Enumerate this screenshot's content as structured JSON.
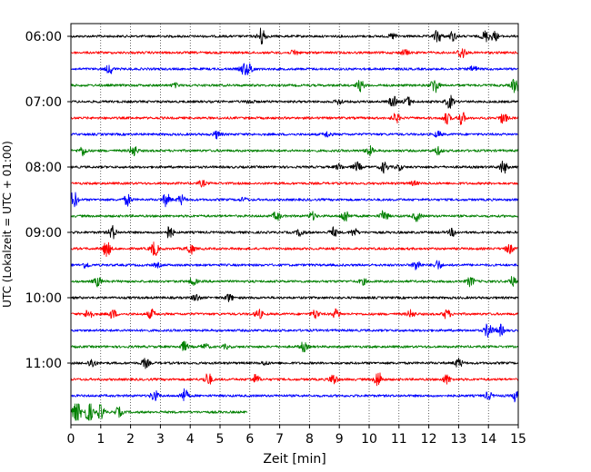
{
  "chart_data": {
    "type": "line",
    "title": "",
    "xlabel": "Zeit  [min]",
    "ylabel": "UTC (Lokalzeit = UTC + 01:00)",
    "xlim": [
      0,
      15
    ],
    "x_ticks": [
      "0",
      "1",
      "2",
      "3",
      "4",
      "5",
      "6",
      "7",
      "8",
      "9",
      "10",
      "11",
      "12",
      "13",
      "14",
      "15"
    ],
    "y_tick_labels": [
      "06:00",
      "07:00",
      "08:00",
      "09:00",
      "10:00",
      "11:00"
    ],
    "y_tick_rows": [
      0,
      4,
      8,
      12,
      16,
      20
    ],
    "grid": "vertical-dotted",
    "color_cycle": [
      "#000000",
      "#ff0000",
      "#0000ff",
      "#008000"
    ],
    "rows": [
      {
        "start": "06:00",
        "color": "#000000",
        "end_min": 15,
        "events": [
          [
            6.4,
            10
          ],
          [
            12.3,
            7
          ],
          [
            12.8,
            5
          ],
          [
            13.9,
            6
          ],
          [
            14.2,
            5
          ],
          [
            10.8,
            3
          ]
        ]
      },
      {
        "start": "06:15",
        "color": "#ff0000",
        "end_min": 15,
        "events": [
          [
            7.5,
            3
          ],
          [
            13.1,
            7
          ],
          [
            11.2,
            3
          ]
        ]
      },
      {
        "start": "06:30",
        "color": "#0000ff",
        "end_min": 15,
        "events": [
          [
            1.3,
            5
          ],
          [
            5.8,
            6
          ],
          [
            6.0,
            5
          ],
          [
            13.5,
            3
          ]
        ]
      },
      {
        "start": "06:45",
        "color": "#008000",
        "end_min": 15,
        "events": [
          [
            9.7,
            6
          ],
          [
            12.2,
            9
          ],
          [
            14.9,
            8
          ],
          [
            3.5,
            2
          ]
        ]
      },
      {
        "start": "07:00",
        "color": "#000000",
        "end_min": 15,
        "events": [
          [
            6.0,
            2
          ],
          [
            9.0,
            3
          ],
          [
            10.8,
            6
          ],
          [
            11.3,
            5
          ],
          [
            12.7,
            7
          ]
        ]
      },
      {
        "start": "07:15",
        "color": "#ff0000",
        "end_min": 15,
        "events": [
          [
            10.9,
            5
          ],
          [
            12.6,
            6
          ],
          [
            13.1,
            7
          ],
          [
            14.5,
            6
          ]
        ]
      },
      {
        "start": "07:30",
        "color": "#0000ff",
        "end_min": 15,
        "events": [
          [
            4.9,
            4
          ],
          [
            8.6,
            3
          ],
          [
            12.3,
            3
          ]
        ]
      },
      {
        "start": "07:45",
        "color": "#008000",
        "end_min": 15,
        "events": [
          [
            0.4,
            5
          ],
          [
            2.1,
            6
          ],
          [
            10.0,
            5
          ],
          [
            12.3,
            4
          ]
        ]
      },
      {
        "start": "08:00",
        "color": "#000000",
        "end_min": 15,
        "events": [
          [
            9.0,
            3
          ],
          [
            9.6,
            5
          ],
          [
            10.5,
            6
          ],
          [
            11.0,
            3
          ],
          [
            14.5,
            7
          ]
        ]
      },
      {
        "start": "08:15",
        "color": "#ff0000",
        "end_min": 15,
        "events": [
          [
            4.4,
            3
          ],
          [
            11.5,
            2
          ]
        ]
      },
      {
        "start": "08:30",
        "color": "#0000ff",
        "end_min": 15,
        "events": [
          [
            0.1,
            9
          ],
          [
            1.9,
            6
          ],
          [
            3.2,
            7
          ],
          [
            3.7,
            5
          ],
          [
            5.8,
            2
          ]
        ]
      },
      {
        "start": "08:45",
        "color": "#008000",
        "end_min": 15,
        "events": [
          [
            6.9,
            5
          ],
          [
            8.1,
            4
          ],
          [
            9.2,
            7
          ],
          [
            10.5,
            6
          ],
          [
            11.6,
            5
          ]
        ]
      },
      {
        "start": "09:00",
        "color": "#000000",
        "end_min": 15,
        "events": [
          [
            1.4,
            7
          ],
          [
            3.3,
            7
          ],
          [
            7.7,
            4
          ],
          [
            8.8,
            5
          ],
          [
            9.5,
            4
          ],
          [
            12.8,
            4
          ]
        ]
      },
      {
        "start": "09:15",
        "color": "#ff0000",
        "end_min": 15,
        "events": [
          [
            1.2,
            9
          ],
          [
            2.8,
            8
          ],
          [
            4.0,
            6
          ],
          [
            14.7,
            5
          ]
        ]
      },
      {
        "start": "09:30",
        "color": "#0000ff",
        "end_min": 15,
        "events": [
          [
            0.5,
            3
          ],
          [
            2.9,
            2
          ],
          [
            11.6,
            6
          ],
          [
            12.3,
            5
          ]
        ]
      },
      {
        "start": "09:45",
        "color": "#008000",
        "end_min": 15,
        "events": [
          [
            0.9,
            5
          ],
          [
            4.1,
            4
          ],
          [
            9.8,
            3
          ],
          [
            13.4,
            5
          ],
          [
            14.8,
            5
          ]
        ]
      },
      {
        "start": "10:00",
        "color": "#000000",
        "end_min": 15,
        "events": [
          [
            4.2,
            4
          ],
          [
            5.3,
            4
          ]
        ]
      },
      {
        "start": "10:15",
        "color": "#ff0000",
        "end_min": 15,
        "events": [
          [
            0.6,
            6
          ],
          [
            1.4,
            5
          ],
          [
            2.7,
            5
          ],
          [
            6.3,
            5
          ],
          [
            8.2,
            5
          ],
          [
            8.9,
            5
          ],
          [
            11.4,
            4
          ],
          [
            12.6,
            5
          ]
        ]
      },
      {
        "start": "10:30",
        "color": "#0000ff",
        "end_min": 15,
        "events": [
          [
            14.0,
            9
          ],
          [
            14.4,
            6
          ]
        ]
      },
      {
        "start": "10:45",
        "color": "#008000",
        "end_min": 15,
        "events": [
          [
            3.8,
            5
          ],
          [
            4.5,
            3
          ],
          [
            7.8,
            5
          ],
          [
            5.2,
            2
          ]
        ]
      },
      {
        "start": "11:00",
        "color": "#000000",
        "end_min": 15,
        "events": [
          [
            0.7,
            5
          ],
          [
            2.5,
            5
          ],
          [
            13.0,
            5
          ],
          [
            6.5,
            2
          ]
        ]
      },
      {
        "start": "11:15",
        "color": "#ff0000",
        "end_min": 15,
        "events": [
          [
            4.6,
            7
          ],
          [
            6.2,
            5
          ],
          [
            8.8,
            6
          ],
          [
            10.3,
            9
          ],
          [
            12.6,
            5
          ]
        ]
      },
      {
        "start": "11:30",
        "color": "#0000ff",
        "end_min": 15,
        "events": [
          [
            2.8,
            6
          ],
          [
            3.8,
            7
          ],
          [
            14.0,
            4
          ],
          [
            15.0,
            16
          ]
        ]
      },
      {
        "start": "11:45",
        "color": "#008000",
        "end_min": 5.9,
        "events": [
          [
            0.2,
            16
          ],
          [
            0.6,
            12
          ],
          [
            1.0,
            8
          ],
          [
            1.6,
            5
          ]
        ]
      }
    ]
  }
}
